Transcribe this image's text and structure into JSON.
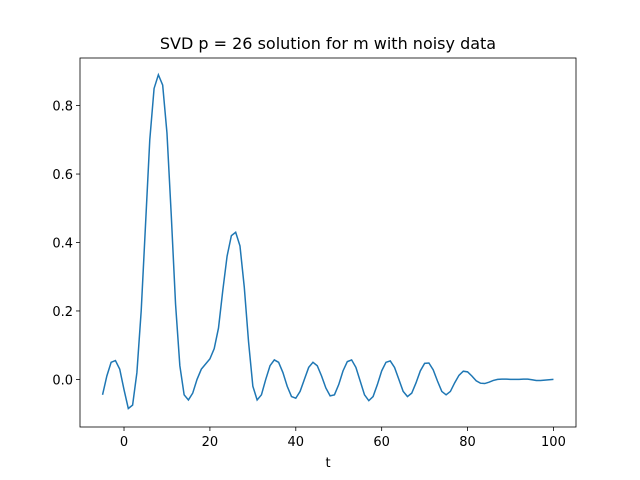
{
  "chart_data": {
    "type": "line",
    "title": "SVD p = 26 solution for m with noisy data",
    "xlabel": "t",
    "x": [
      -5,
      -4,
      -3,
      -2,
      -1,
      0,
      1,
      2,
      3,
      4,
      5,
      6,
      7,
      8,
      9,
      10,
      11,
      12,
      13,
      14,
      15,
      16,
      17,
      18,
      19,
      20,
      21,
      22,
      23,
      24,
      25,
      26,
      27,
      28,
      29,
      30,
      31,
      32,
      33,
      34,
      35,
      36,
      37,
      38,
      39,
      40,
      41,
      42,
      43,
      44,
      45,
      46,
      47,
      48,
      49,
      50,
      51,
      52,
      53,
      54,
      55,
      56,
      57,
      58,
      59,
      60,
      61,
      62,
      63,
      64,
      65,
      66,
      67,
      68,
      69,
      70,
      71,
      72,
      73,
      74,
      75,
      76,
      77,
      78,
      79,
      80,
      81,
      82,
      83,
      84,
      85,
      86,
      87,
      88,
      89,
      90,
      91,
      92,
      93,
      94,
      95,
      96,
      97,
      98,
      99,
      100
    ],
    "series": [
      {
        "color": "#1f77b4",
        "values": [
          -0.045,
          0.01,
          0.05,
          0.055,
          0.03,
          -0.03,
          -0.085,
          -0.075,
          0.02,
          0.2,
          0.45,
          0.7,
          0.85,
          0.89,
          0.86,
          0.72,
          0.48,
          0.22,
          0.04,
          -0.045,
          -0.06,
          -0.04,
          0.0,
          0.03,
          0.045,
          0.06,
          0.09,
          0.15,
          0.26,
          0.36,
          0.42,
          0.43,
          0.39,
          0.27,
          0.11,
          -0.02,
          -0.06,
          -0.045,
          0.0,
          0.04,
          0.057,
          0.05,
          0.02,
          -0.02,
          -0.05,
          -0.055,
          -0.035,
          0.0,
          0.035,
          0.05,
          0.04,
          0.01,
          -0.025,
          -0.048,
          -0.045,
          -0.015,
          0.025,
          0.052,
          0.057,
          0.035,
          -0.005,
          -0.045,
          -0.062,
          -0.05,
          -0.015,
          0.025,
          0.05,
          0.054,
          0.035,
          0.0,
          -0.035,
          -0.05,
          -0.04,
          -0.01,
          0.025,
          0.047,
          0.048,
          0.028,
          -0.005,
          -0.035,
          -0.045,
          -0.035,
          -0.01,
          0.012,
          0.024,
          0.022,
          0.01,
          -0.004,
          -0.011,
          -0.012,
          -0.008,
          -0.003,
          0.0,
          0.001,
          0.001,
          0.0,
          0.0,
          0.0,
          0.001,
          0.001,
          -0.001,
          -0.003,
          -0.003,
          -0.002,
          -0.001,
          0.0
        ]
      }
    ],
    "xlim": [
      -10.25,
      105.25
    ],
    "ylim": [
      -0.139,
      0.939
    ],
    "xticks": [
      0,
      20,
      40,
      60,
      80,
      100
    ],
    "yticks": [
      {
        "value": 0,
        "label": "0.0"
      },
      0.2,
      0.4,
      0.6,
      0.8
    ]
  }
}
